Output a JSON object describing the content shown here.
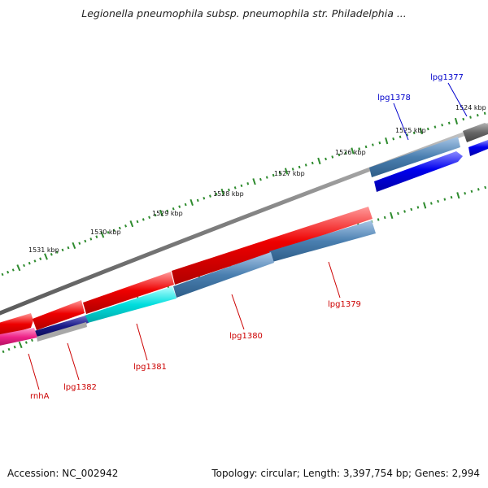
{
  "title": "Legionella pneumophila subsp. pneumophila str. Philadelphia ...",
  "footer": {
    "accession": "Accession: NC_002942",
    "summary": "Topology: circular; Length: 3,397,754 bp; Genes: 2,994"
  },
  "colors": {
    "backbone": "#808080",
    "tick": "#2e8b2e",
    "forward_gene_label": "#0000cc",
    "reverse_gene_label": "#cc0000",
    "red": "#ee0000",
    "steelblue": "#4a7fb0",
    "blue": "#0000ee",
    "gray": "#666666",
    "cyan": "#00dddd",
    "magenta": "#ee2288",
    "navy": "#1a1a88"
  },
  "kbp_labels": [
    "1524 kbp",
    "1525 kbp",
    "1526 kbp",
    "1527 kbp",
    "1528 kbp",
    "1529 kbp",
    "1530 kbp",
    "1531 kbp"
  ],
  "gene_labels": [
    "lpg1377",
    "lpg1378",
    "lpg1379",
    "lpg1380",
    "lpg1381",
    "lpg1382",
    "rnhA"
  ]
}
